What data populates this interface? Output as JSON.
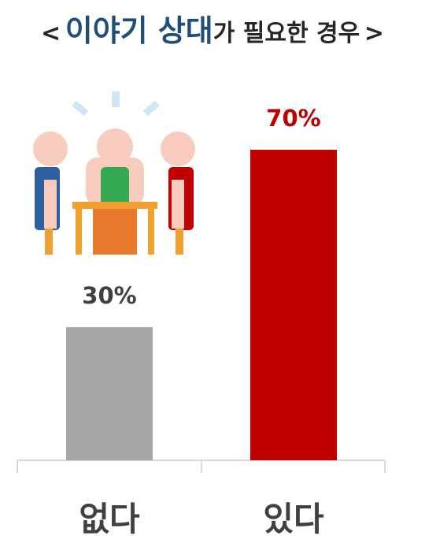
{
  "title": {
    "open": "<",
    "highlight": "이야기 상대",
    "rest": "가 필요한 경우",
    "close": ">"
  },
  "colors": {
    "title_highlight": "#1f4e79",
    "title_text": "#262626",
    "bar_none": "#a6a6a6",
    "bar_yes": "#c00000",
    "label_none": "#404040",
    "label_yes": "#c00000",
    "axis": "#d9d9d9"
  },
  "illustration": {
    "icon": "people-meeting-at-table-icon"
  },
  "chart_data": {
    "type": "bar",
    "categories": [
      "없다",
      "있다"
    ],
    "values": [
      30,
      70
    ],
    "value_labels": [
      "30%",
      "70%"
    ],
    "title": "< 이야기 상대가 필요한 경우 >",
    "xlabel": "",
    "ylabel": "",
    "ylim": [
      0,
      100
    ],
    "grid": false,
    "legend": "none"
  }
}
